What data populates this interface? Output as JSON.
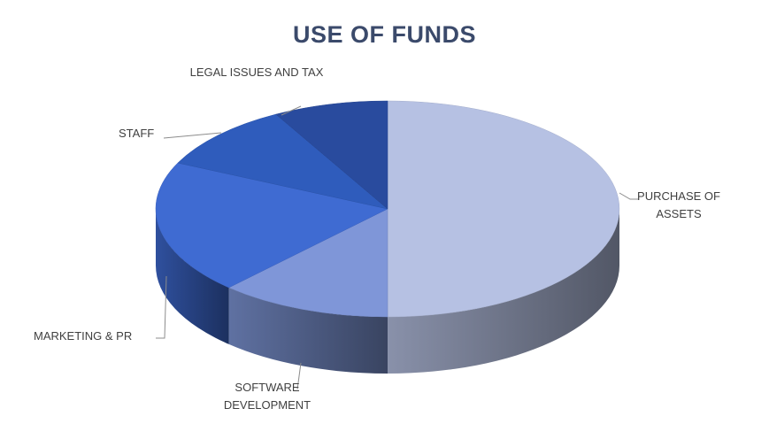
{
  "chart_data": {
    "type": "pie",
    "title": "USE OF FUNDS",
    "categories": [
      "PURCHASE OF ASSETS",
      "SOFTWARE DEVELOPMENT",
      "MARKETING & PR",
      "STAFF",
      "LEGAL ISSUES AND TAX"
    ],
    "values": [
      50,
      12,
      20,
      10,
      8
    ],
    "colors": [
      "#b6c1e3",
      "#7f96d8",
      "#3f6bd2",
      "#2f5cbc",
      "#294b9e"
    ]
  }
}
